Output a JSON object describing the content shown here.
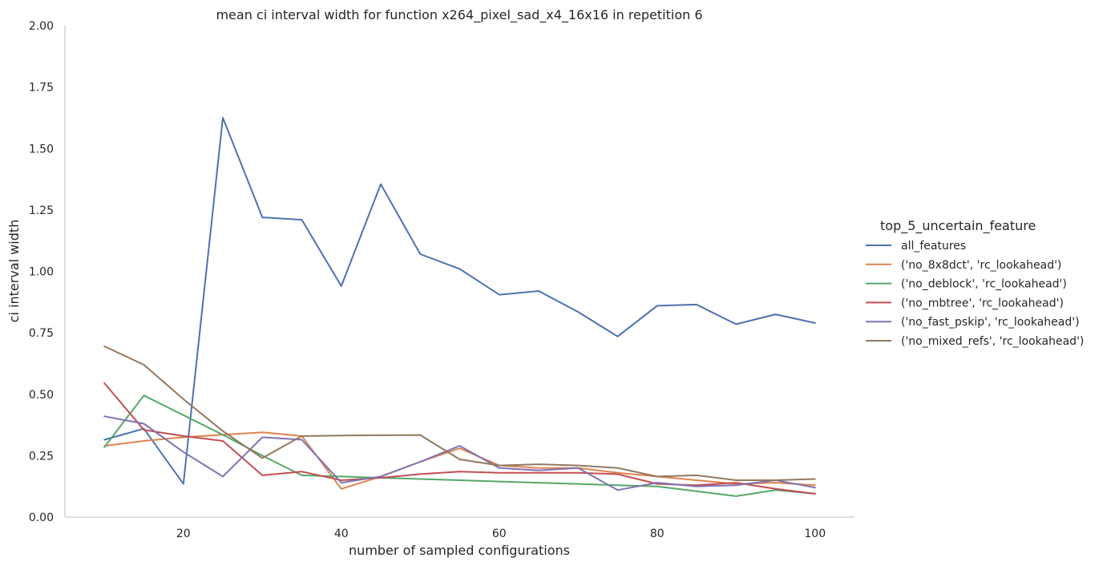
{
  "chart_data": {
    "type": "line",
    "title": "mean ci interval width for function x264_pixel_sad_x4_16x16 in repetition 6",
    "xlabel": "number of sampled configurations",
    "ylabel": "ci interval width",
    "xlim": [
      5,
      105
    ],
    "ylim": [
      0,
      2.0
    ],
    "xticks": [
      20,
      40,
      60,
      80,
      100
    ],
    "yticks": [
      "0.00",
      "0.25",
      "0.50",
      "0.75",
      "1.00",
      "1.25",
      "1.50",
      "1.75",
      "2.00"
    ],
    "grid": false,
    "legend_title": "top_5_uncertain_feature",
    "legend_position": "right",
    "x": [
      10,
      15,
      20,
      25,
      30,
      35,
      40,
      45,
      50,
      55,
      60,
      65,
      70,
      75,
      80,
      85,
      90,
      95,
      100
    ],
    "series": [
      {
        "name": "all_features",
        "color": "#4c72b0",
        "values": [
          0.315,
          0.36,
          0.135,
          1.625,
          1.22,
          1.21,
          0.94,
          1.355,
          1.07,
          1.01,
          0.905,
          0.92,
          0.835,
          0.735,
          0.86,
          0.865,
          0.785,
          0.825,
          0.79
        ]
      },
      {
        "name": "('no_8x8dct', 'rc_lookahead')",
        "color": "#dd8452",
        "values": [
          0.29,
          0.31,
          0.325,
          0.335,
          0.345,
          0.33,
          0.115,
          0.165,
          0.225,
          0.28,
          0.21,
          0.2,
          0.2,
          0.18,
          0.165,
          0.15,
          0.135,
          0.14,
          0.13
        ]
      },
      {
        "name": "('no_deblock', 'rc_lookahead')",
        "color": "#55a868",
        "values": [
          0.285,
          0.495,
          0.415,
          0.335,
          0.25,
          0.17,
          0.165,
          0.16,
          0.155,
          0.15,
          0.145,
          0.14,
          0.135,
          0.13,
          0.125,
          0.105,
          0.085,
          0.11,
          0.095
        ]
      },
      {
        "name": "('no_mbtree', 'rc_lookahead')",
        "color": "#c44e52",
        "values": [
          0.545,
          0.355,
          0.33,
          0.31,
          0.17,
          0.185,
          0.15,
          0.16,
          0.175,
          0.185,
          0.18,
          0.18,
          0.18,
          0.175,
          0.135,
          0.13,
          0.14,
          0.115,
          0.095
        ]
      },
      {
        "name": "('no_fast_pskip', 'rc_lookahead')",
        "color": "#8172b3",
        "values": [
          0.41,
          0.38,
          0.265,
          0.165,
          0.325,
          0.315,
          0.14,
          0.165,
          0.225,
          0.29,
          0.2,
          0.19,
          0.2,
          0.11,
          0.14,
          0.125,
          0.13,
          0.15,
          0.12
        ]
      },
      {
        "name": "('no_mixed_refs', 'rc_lookahead')",
        "color": "#937860",
        "values": [
          0.695,
          0.62,
          0.48,
          0.35,
          0.24,
          0.33,
          0.332,
          0.333,
          0.334,
          0.235,
          0.21,
          0.215,
          0.21,
          0.2,
          0.165,
          0.17,
          0.15,
          0.15,
          0.155
        ]
      }
    ]
  }
}
